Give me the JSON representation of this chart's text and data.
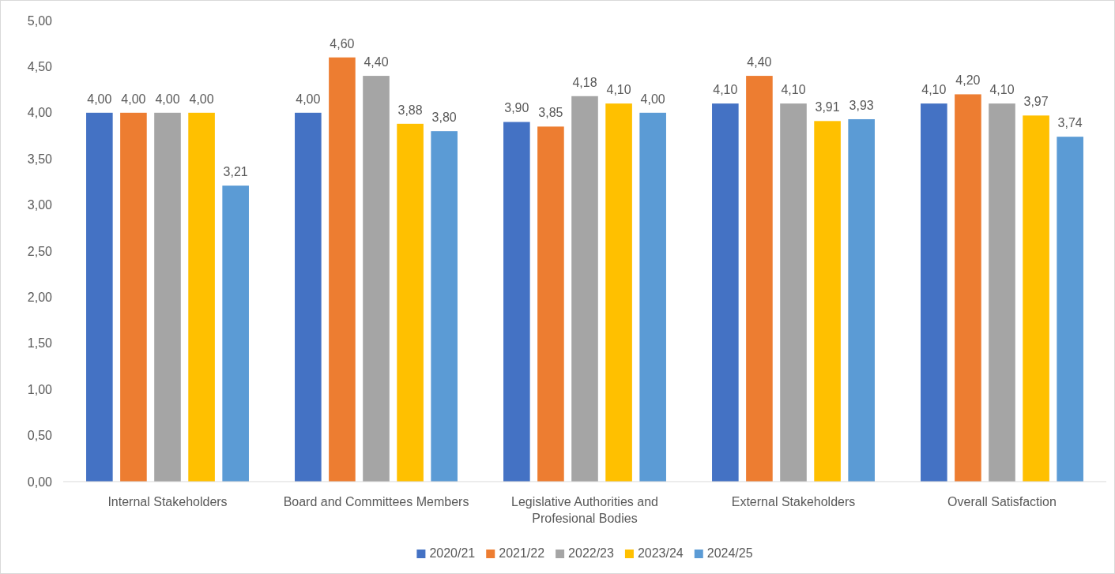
{
  "chart_data": {
    "type": "bar",
    "categories": [
      "Internal Stakeholders",
      "Board and Committees Members",
      "Legislative Authorities and Profesional Bodies",
      "External Stakeholders",
      "Overall Satisfaction"
    ],
    "series": [
      {
        "name": "2020/21",
        "color": "#4472c4",
        "values": [
          4.0,
          4.0,
          3.9,
          4.1,
          4.1
        ],
        "value_labels": [
          "4,00",
          "4,00",
          "3,90",
          "4,10",
          "4,10"
        ]
      },
      {
        "name": "2021/22",
        "color": "#ed7d31",
        "values": [
          4.0,
          4.6,
          3.85,
          4.4,
          4.2
        ],
        "value_labels": [
          "4,00",
          "4,60",
          "3,85",
          "4,40",
          "4,20"
        ]
      },
      {
        "name": "2022/23",
        "color": "#a5a5a5",
        "values": [
          4.0,
          4.4,
          4.18,
          4.1,
          4.1
        ],
        "value_labels": [
          "4,00",
          "4,40",
          "4,18",
          "4,10",
          "4,10"
        ]
      },
      {
        "name": "2023/24",
        "color": "#ffc000",
        "values": [
          4.0,
          3.88,
          4.1,
          3.91,
          3.97
        ],
        "value_labels": [
          "4,00",
          "3,88",
          "4,10",
          "3,91",
          "3,97"
        ]
      },
      {
        "name": "2024/25",
        "color": "#5b9bd5",
        "values": [
          3.21,
          3.8,
          4.0,
          3.93,
          3.74
        ],
        "value_labels": [
          "3,21",
          "3,80",
          "4,00",
          "3,93",
          "3,74"
        ]
      }
    ],
    "ylim": [
      0,
      5
    ],
    "yticks": [
      {
        "value": 0,
        "label": "0,00"
      },
      {
        "value": 0.5,
        "label": "0,50"
      },
      {
        "value": 1,
        "label": "1,00"
      },
      {
        "value": 1.5,
        "label": "1,50"
      },
      {
        "value": 2,
        "label": "2,00"
      },
      {
        "value": 2.5,
        "label": "2,50"
      },
      {
        "value": 3,
        "label": "3,00"
      },
      {
        "value": 3.5,
        "label": "3,50"
      },
      {
        "value": 4,
        "label": "4,00"
      },
      {
        "value": 4.5,
        "label": "4,50"
      },
      {
        "value": 5,
        "label": "5,00"
      }
    ],
    "grid": false,
    "legend": "bottom"
  }
}
